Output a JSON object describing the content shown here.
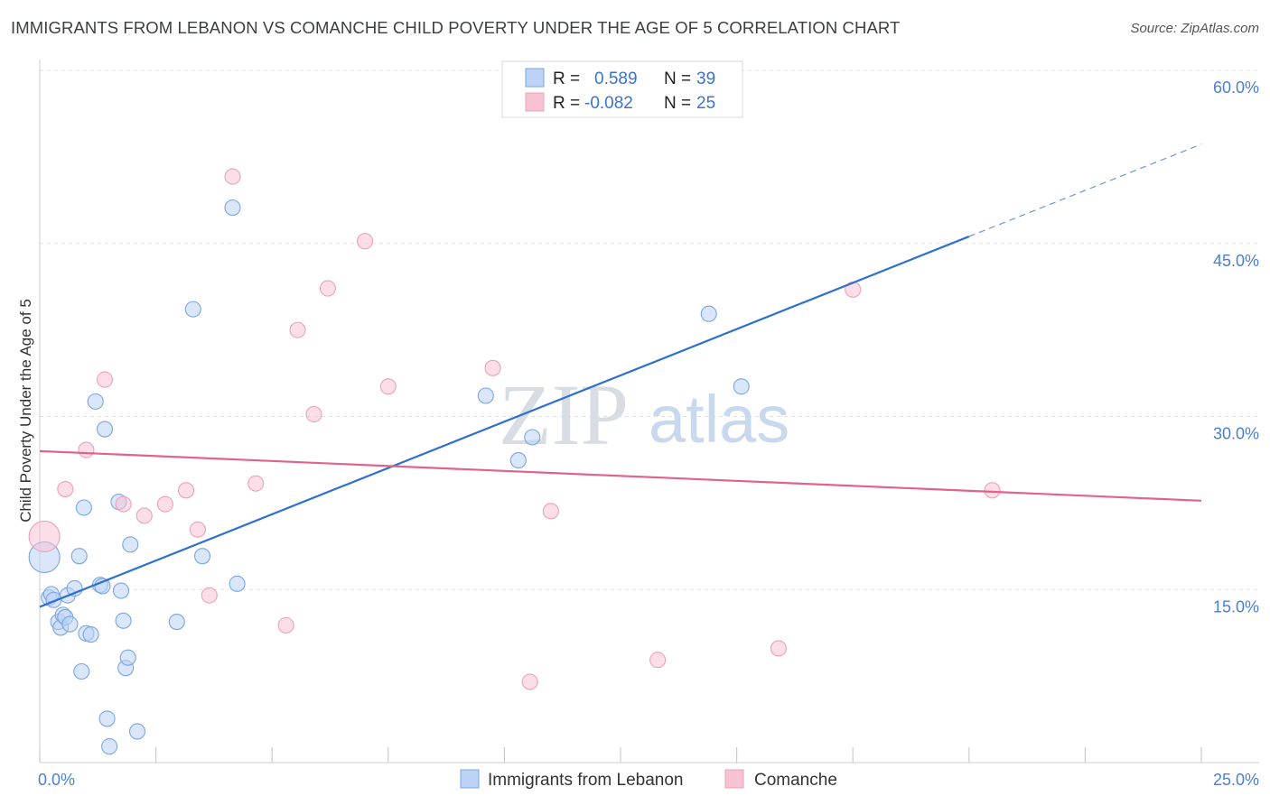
{
  "title": "IMMIGRANTS FROM LEBANON VS COMANCHE CHILD POVERTY UNDER THE AGE OF 5 CORRELATION CHART",
  "source": "Source: ZipAtlas.com",
  "watermark": {
    "zip": "ZIP",
    "atlas": "atlas"
  },
  "colors": {
    "blue": "#4a86e0",
    "blue_fill": "#bcd3f5",
    "pink": "#e0628e",
    "pink_fill": "#f7c3d3",
    "grid": "#dde1e6",
    "axis_label": "#4a7fd1"
  },
  "legend": {
    "r_label": "R =",
    "n_label": "N =",
    "series": [
      {
        "r": "0.589",
        "n": "39"
      },
      {
        "r": "-0.082",
        "n": "25"
      }
    ]
  },
  "chart_data": {
    "type": "scatter",
    "title": "IMMIGRANTS FROM LEBANON VS COMANCHE CHILD POVERTY UNDER THE AGE OF 5 CORRELATION CHART",
    "xlabel": "",
    "ylabel": "Child Poverty Under the Age of 5",
    "xlim": [
      0,
      25
    ],
    "ylim": [
      0,
      60
    ],
    "x_tick_labels": [
      "0.0%",
      "25.0%"
    ],
    "y_ticks": [
      15,
      30,
      45,
      60
    ],
    "y_tick_labels": [
      "15.0%",
      "30.0%",
      "45.0%",
      "60.0%"
    ],
    "grid": true,
    "legend_position": "top-center",
    "series": [
      {
        "name": "Immigrants from Lebanon",
        "color": "#4a86e0",
        "points": [
          [
            0.1,
            17.8
          ],
          [
            0.2,
            14.3
          ],
          [
            0.25,
            14.6
          ],
          [
            0.3,
            14.1
          ],
          [
            0.4,
            12.2
          ],
          [
            0.45,
            11.7
          ],
          [
            0.5,
            12.8
          ],
          [
            0.55,
            12.6
          ],
          [
            0.6,
            14.5
          ],
          [
            0.65,
            12.0
          ],
          [
            0.75,
            15.1
          ],
          [
            0.85,
            17.9
          ],
          [
            0.9,
            7.9
          ],
          [
            0.95,
            22.1
          ],
          [
            1.0,
            11.2
          ],
          [
            1.1,
            11.1
          ],
          [
            1.2,
            31.3
          ],
          [
            1.3,
            15.4
          ],
          [
            1.35,
            15.3
          ],
          [
            1.4,
            28.9
          ],
          [
            1.45,
            3.8
          ],
          [
            1.5,
            1.4
          ],
          [
            1.7,
            22.6
          ],
          [
            1.75,
            14.9
          ],
          [
            1.8,
            12.3
          ],
          [
            1.85,
            8.2
          ],
          [
            1.9,
            9.1
          ],
          [
            1.95,
            18.9
          ],
          [
            2.1,
            2.7
          ],
          [
            2.95,
            12.2
          ],
          [
            3.3,
            39.3
          ],
          [
            3.5,
            17.9
          ],
          [
            4.15,
            48.1
          ],
          [
            4.25,
            15.5
          ],
          [
            9.6,
            31.8
          ],
          [
            10.3,
            26.2
          ],
          [
            10.6,
            28.2
          ],
          [
            14.4,
            38.9
          ],
          [
            15.1,
            32.6
          ]
        ],
        "trend": {
          "x": [
            0,
            20.0
          ],
          "y": [
            13.5,
            45.6
          ],
          "dashed_x": [
            20.0,
            25.0
          ],
          "dashed_y": [
            45.6,
            53.6
          ]
        }
      },
      {
        "name": "Comanche",
        "color": "#e0628e",
        "points": [
          [
            0.1,
            19.6
          ],
          [
            0.55,
            23.7
          ],
          [
            1.0,
            27.1
          ],
          [
            1.4,
            33.2
          ],
          [
            1.8,
            22.4
          ],
          [
            2.25,
            21.4
          ],
          [
            2.7,
            22.4
          ],
          [
            3.15,
            23.6
          ],
          [
            3.4,
            20.2
          ],
          [
            3.65,
            14.5
          ],
          [
            4.15,
            50.8
          ],
          [
            4.65,
            24.2
          ],
          [
            5.3,
            11.9
          ],
          [
            5.55,
            37.5
          ],
          [
            5.9,
            30.2
          ],
          [
            6.2,
            41.1
          ],
          [
            7.0,
            45.2
          ],
          [
            7.5,
            32.6
          ],
          [
            9.75,
            34.2
          ],
          [
            10.55,
            7.0
          ],
          [
            11.0,
            21.8
          ],
          [
            13.3,
            8.9
          ],
          [
            15.9,
            9.9
          ],
          [
            17.5,
            41.0
          ],
          [
            20.5,
            23.6
          ]
        ],
        "trend": {
          "x": [
            0,
            25.0
          ],
          "y": [
            27.0,
            22.7
          ]
        }
      }
    ]
  },
  "bottom_legend": [
    "Immigrants from Lebanon",
    "Comanche"
  ]
}
